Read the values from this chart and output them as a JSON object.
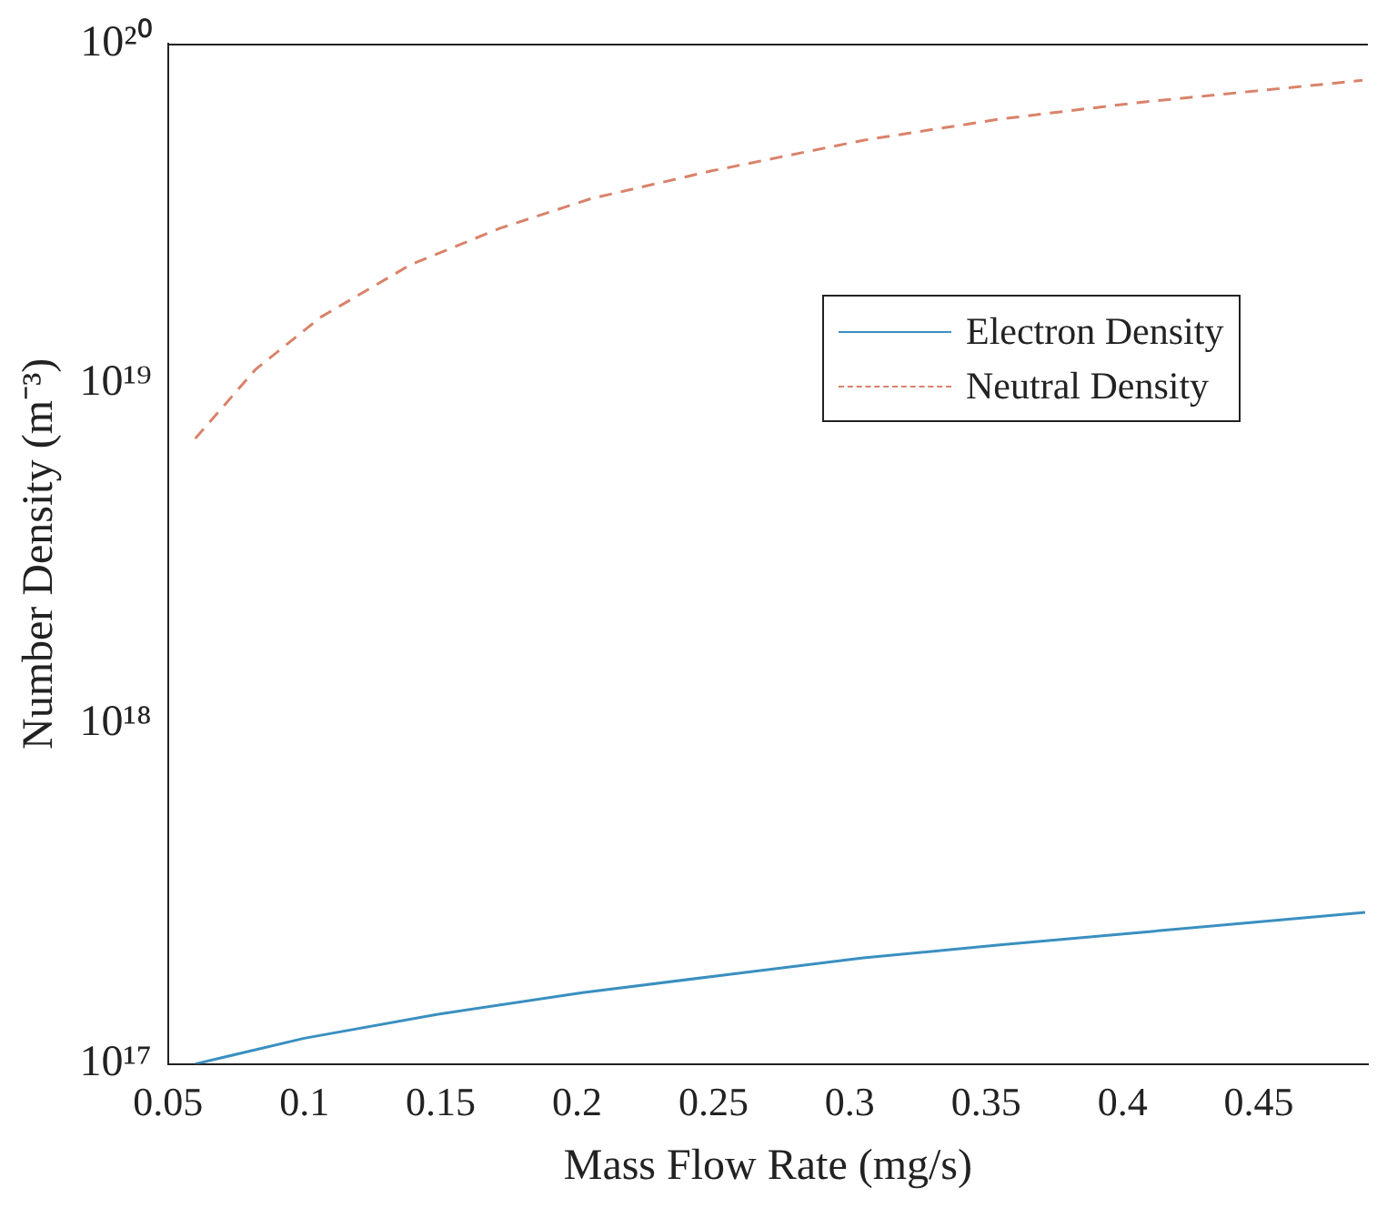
{
  "chart_data": {
    "type": "line",
    "xlabel": "Mass Flow Rate (mg/s)",
    "ylabel": "Number Density (m⁻³)",
    "log": "y",
    "xlim": [
      0.05,
      0.49
    ],
    "xticks": [
      0.05,
      0.1,
      0.15,
      0.2,
      0.25,
      0.3,
      0.35,
      0.4,
      0.45
    ],
    "ylim": [
      1e+17,
      1e+20
    ],
    "yticks": [
      {
        "value": 1e+17,
        "label": "10¹⁷"
      },
      {
        "value": 1e+18,
        "label": "10¹⁸"
      },
      {
        "value": 1e+19,
        "label": "10¹⁹"
      },
      {
        "value": 1e+20,
        "label": "10²⁰"
      }
    ],
    "grid": false,
    "legend": "right",
    "marker": "none",
    "series": [
      {
        "name": "Electron Density",
        "color": "#3a8fc0",
        "line_style": "solid",
        "x": [
          0.06,
          0.1,
          0.149,
          0.202,
          0.255,
          0.305,
          0.355,
          0.405,
          0.489
        ],
        "values": [
          1e+17,
          1.19e+17,
          1.4e+17,
          1.62e+17,
          1.83e+17,
          2.05e+17,
          2.24e+17,
          2.43e+17,
          2.79e+17
        ]
      },
      {
        "name": "Neutral Density",
        "color": "#d9826a",
        "line_style": "dashed",
        "x": [
          0.06,
          0.082,
          0.106,
          0.139,
          0.172,
          0.205,
          0.249,
          0.305,
          0.355,
          0.405,
          0.488
        ],
        "values": [
          6.9e+18,
          1.1e+19,
          1.57e+19,
          2.24e+19,
          2.87e+19,
          3.5e+19,
          4.22e+19,
          5.2e+19,
          6e+19,
          6.7e+19,
          7.8e+19
        ]
      }
    ]
  }
}
